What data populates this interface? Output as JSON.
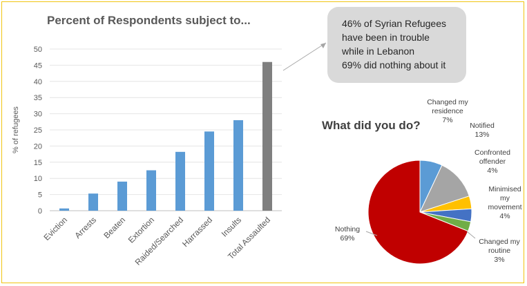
{
  "bar_title": "Percent of Respondents subject to...",
  "pie_title": "What did you do?",
  "callout": {
    "lines": [
      "46% of Syrian Refugees",
      "have been in trouble",
      "while in Lebanon",
      "69% did nothing about it"
    ]
  },
  "colors": {
    "bar": "#5b9bd5",
    "bar_highlight": "#7f7f7f",
    "callout_bg": "#d9d9d9",
    "border": "#f1c40f"
  },
  "chart_data": [
    {
      "type": "bar",
      "title": "Percent of Respondents subject to...",
      "ylabel": "% of refugees",
      "xlabel": "",
      "ylim": [
        0,
        50
      ],
      "yticks": [
        0,
        5,
        10,
        15,
        20,
        25,
        30,
        35,
        40,
        45,
        50
      ],
      "grid": true,
      "categories": [
        "Eviction",
        "Arrests",
        "Beaten",
        "Extortion",
        "Raided/Searched",
        "Harrassed",
        "Insults",
        "Total Assaulted"
      ],
      "values": [
        0.7,
        5.3,
        9,
        12.5,
        18.2,
        24.5,
        28,
        46
      ],
      "colors": [
        "#5b9bd5",
        "#5b9bd5",
        "#5b9bd5",
        "#5b9bd5",
        "#5b9bd5",
        "#5b9bd5",
        "#5b9bd5",
        "#7f7f7f"
      ]
    },
    {
      "type": "pie",
      "title": "What did you do?",
      "slices": [
        {
          "name": "Changed my residence",
          "value": 7,
          "color": "#5b9bd5",
          "label": [
            "Changed my",
            "residence",
            "7%"
          ]
        },
        {
          "name": "Notified",
          "value": 13,
          "color": "#a5a5a5",
          "label": [
            "Notified",
            "13%"
          ]
        },
        {
          "name": "Confronted offender",
          "value": 4,
          "color": "#ffc000",
          "label": [
            "Confronted",
            "offender",
            "4%"
          ]
        },
        {
          "name": "Minimised my movement",
          "value": 4,
          "color": "#4472c4",
          "label": [
            "Minimised",
            "my",
            "movement",
            "4%"
          ]
        },
        {
          "name": "Changed my routine",
          "value": 3,
          "color": "#70ad47",
          "label": [
            "Changed my",
            "routine",
            "3%"
          ]
        },
        {
          "name": "Nothing",
          "value": 69,
          "color": "#c00000",
          "label": [
            "Nothing",
            "69%"
          ]
        }
      ]
    }
  ]
}
